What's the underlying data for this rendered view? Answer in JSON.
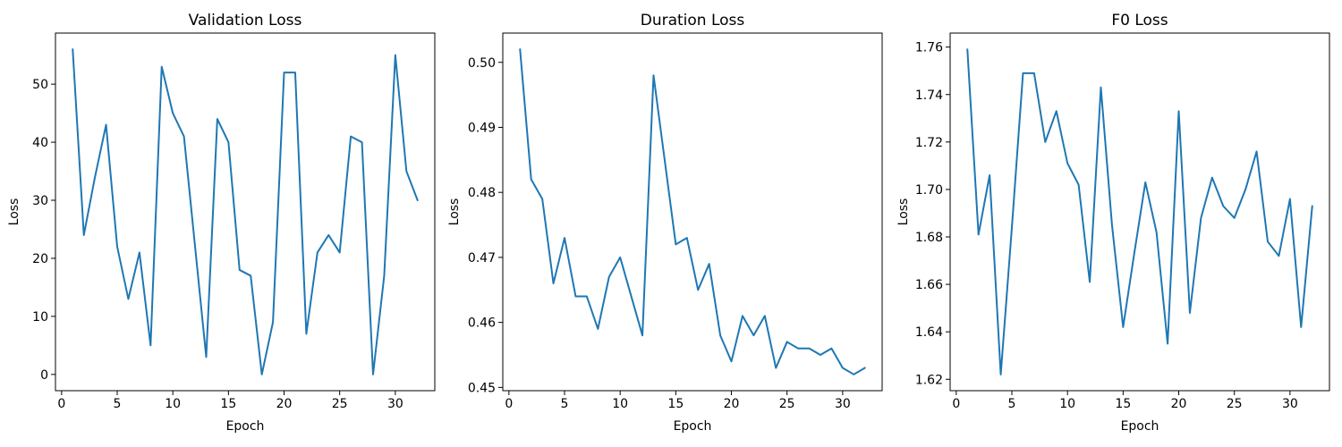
{
  "figure": {
    "background": "#ffffff"
  },
  "chart_data": [
    {
      "type": "line",
      "title": "Validation Loss",
      "xlabel": "Epoch",
      "ylabel": "Loss",
      "line_color": "#1f77b4",
      "grid": false,
      "legend": null,
      "x": [
        1,
        2,
        3,
        4,
        5,
        6,
        7,
        8,
        9,
        10,
        11,
        12,
        13,
        14,
        15,
        16,
        17,
        18,
        19,
        20,
        21,
        22,
        23,
        24,
        25,
        26,
        27,
        28,
        29,
        30,
        31,
        32
      ],
      "y": [
        56,
        24,
        34,
        43,
        22,
        13,
        21,
        5,
        53,
        45,
        41,
        22,
        3,
        44,
        40,
        18,
        17,
        0,
        9,
        52,
        52,
        7,
        21,
        24,
        21,
        41,
        40,
        0,
        17,
        55,
        35,
        30
      ],
      "xticks": [
        0,
        5,
        10,
        15,
        20,
        25,
        30
      ],
      "xtick_labels": [
        "0",
        "5",
        "10",
        "15",
        "20",
        "25",
        "30"
      ],
      "yticks": [
        0,
        10,
        20,
        30,
        40,
        50
      ],
      "ytick_labels": [
        "0",
        "10",
        "20",
        "30",
        "40",
        "50"
      ],
      "xlim": [
        -0.55,
        33.55
      ],
      "ylim": [
        -2.8,
        58.8
      ]
    },
    {
      "type": "line",
      "title": "Duration Loss",
      "xlabel": "Epoch",
      "ylabel": "Loss",
      "line_color": "#1f77b4",
      "grid": false,
      "legend": null,
      "x": [
        1,
        2,
        3,
        4,
        5,
        6,
        7,
        8,
        9,
        10,
        11,
        12,
        13,
        14,
        15,
        16,
        17,
        18,
        19,
        20,
        21,
        22,
        23,
        24,
        25,
        26,
        27,
        28,
        29,
        30,
        31,
        32
      ],
      "y": [
        0.502,
        0.482,
        0.479,
        0.466,
        0.473,
        0.464,
        0.464,
        0.459,
        0.467,
        0.47,
        0.464,
        0.458,
        0.498,
        0.485,
        0.472,
        0.473,
        0.465,
        0.469,
        0.458,
        0.454,
        0.461,
        0.458,
        0.461,
        0.453,
        0.457,
        0.456,
        0.456,
        0.455,
        0.456,
        0.453,
        0.452,
        0.453
      ],
      "xticks": [
        0,
        5,
        10,
        15,
        20,
        25,
        30
      ],
      "xtick_labels": [
        "0",
        "5",
        "10",
        "15",
        "20",
        "25",
        "30"
      ],
      "yticks": [
        0.45,
        0.46,
        0.47,
        0.48,
        0.49,
        0.5
      ],
      "ytick_labels": [
        "0.45",
        "0.46",
        "0.47",
        "0.48",
        "0.49",
        "0.50"
      ],
      "xlim": [
        -0.55,
        33.55
      ],
      "ylim": [
        0.4495,
        0.5045
      ]
    },
    {
      "type": "line",
      "title": "F0 Loss",
      "xlabel": "Epoch",
      "ylabel": "Loss",
      "line_color": "#1f77b4",
      "grid": false,
      "legend": null,
      "x": [
        1,
        2,
        3,
        4,
        5,
        6,
        7,
        8,
        9,
        10,
        11,
        12,
        13,
        14,
        15,
        16,
        17,
        18,
        19,
        20,
        21,
        22,
        23,
        24,
        25,
        26,
        27,
        28,
        29,
        30,
        31,
        32
      ],
      "y": [
        1.759,
        1.681,
        1.706,
        1.622,
        1.684,
        1.749,
        1.749,
        1.72,
        1.733,
        1.711,
        1.702,
        1.661,
        1.743,
        1.685,
        1.642,
        1.673,
        1.703,
        1.682,
        1.635,
        1.733,
        1.648,
        1.688,
        1.705,
        1.693,
        1.688,
        1.7,
        1.716,
        1.678,
        1.672,
        1.696,
        1.642,
        1.693
      ],
      "xticks": [
        0,
        5,
        10,
        15,
        20,
        25,
        30
      ],
      "xtick_labels": [
        "0",
        "5",
        "10",
        "15",
        "20",
        "25",
        "30"
      ],
      "yticks": [
        1.62,
        1.64,
        1.66,
        1.68,
        1.7,
        1.72,
        1.74,
        1.76
      ],
      "ytick_labels": [
        "1.62",
        "1.64",
        "1.66",
        "1.68",
        "1.70",
        "1.72",
        "1.74",
        "1.76"
      ],
      "xlim": [
        -0.55,
        33.55
      ],
      "ylim": [
        1.6152,
        1.7659
      ]
    }
  ]
}
